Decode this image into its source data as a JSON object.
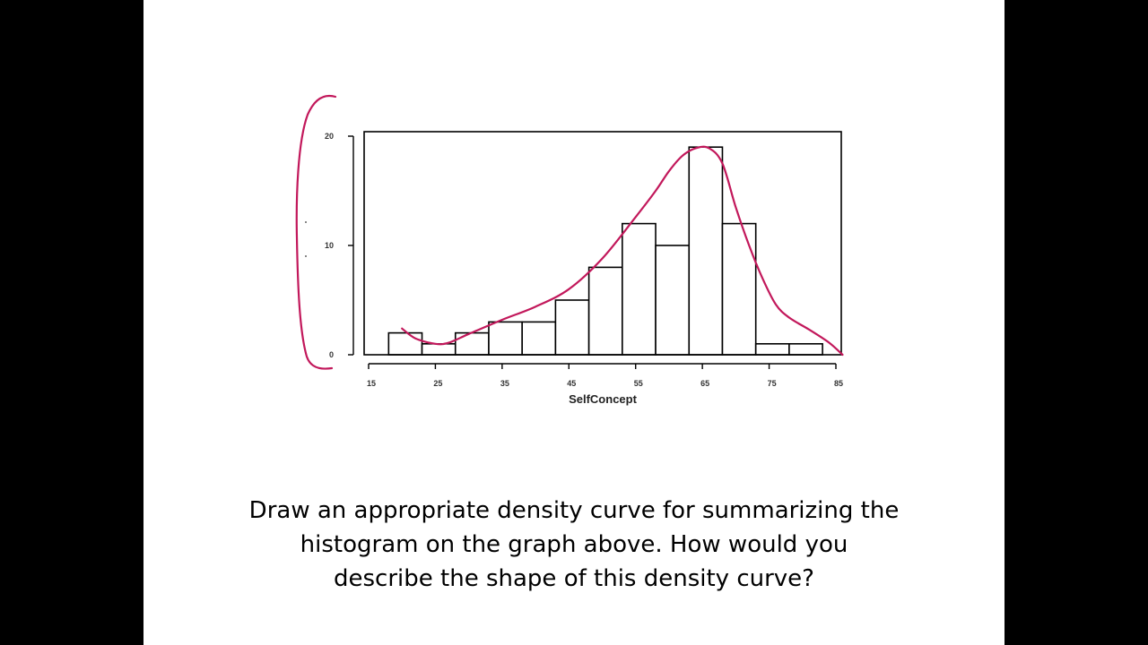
{
  "slide": {
    "prompt_lines": [
      "Draw an appropriate density curve for summarizing the",
      "histogram on the graph above.  How would you",
      "describe the shape of this density curve?"
    ]
  },
  "chart_data": {
    "type": "bar",
    "xlabel": "SelfConcept",
    "ylabel": "",
    "title": "",
    "x_ticks": [
      15,
      25,
      35,
      45,
      55,
      65,
      75,
      85
    ],
    "y_ticks": [
      0,
      10,
      20
    ],
    "xlim": [
      15,
      86
    ],
    "ylim": [
      0,
      20
    ],
    "bin_width": 5,
    "bins": [
      {
        "start": 18,
        "count": 2
      },
      {
        "start": 23,
        "count": 1
      },
      {
        "start": 28,
        "count": 2
      },
      {
        "start": 33,
        "count": 3
      },
      {
        "start": 38,
        "count": 3
      },
      {
        "start": 43,
        "count": 5
      },
      {
        "start": 48,
        "count": 8
      },
      {
        "start": 53,
        "count": 12
      },
      {
        "start": 58,
        "count": 10
      },
      {
        "start": 63,
        "count": 19
      },
      {
        "start": 68,
        "count": 12
      },
      {
        "start": 73,
        "count": 1
      },
      {
        "start": 78,
        "count": 1
      }
    ],
    "grid": false,
    "annotations": {
      "ink_color": "#c2185b",
      "density_curve": [
        [
          20,
          2.4
        ],
        [
          22,
          1.5
        ],
        [
          25,
          1.0
        ],
        [
          27,
          1.1
        ],
        [
          30,
          1.9
        ],
        [
          35,
          3.2
        ],
        [
          40,
          4.4
        ],
        [
          45,
          6.0
        ],
        [
          50,
          8.8
        ],
        [
          55,
          12.6
        ],
        [
          58,
          15.0
        ],
        [
          60,
          16.8
        ],
        [
          62,
          18.2
        ],
        [
          64,
          18.9
        ],
        [
          66,
          18.9
        ],
        [
          68,
          17.5
        ],
        [
          70,
          13.5
        ],
        [
          72,
          10.0
        ],
        [
          74,
          7.0
        ],
        [
          76,
          4.6
        ],
        [
          78,
          3.4
        ],
        [
          81,
          2.3
        ],
        [
          84,
          1.1
        ],
        [
          86,
          0
        ]
      ],
      "bracket": true
    }
  }
}
